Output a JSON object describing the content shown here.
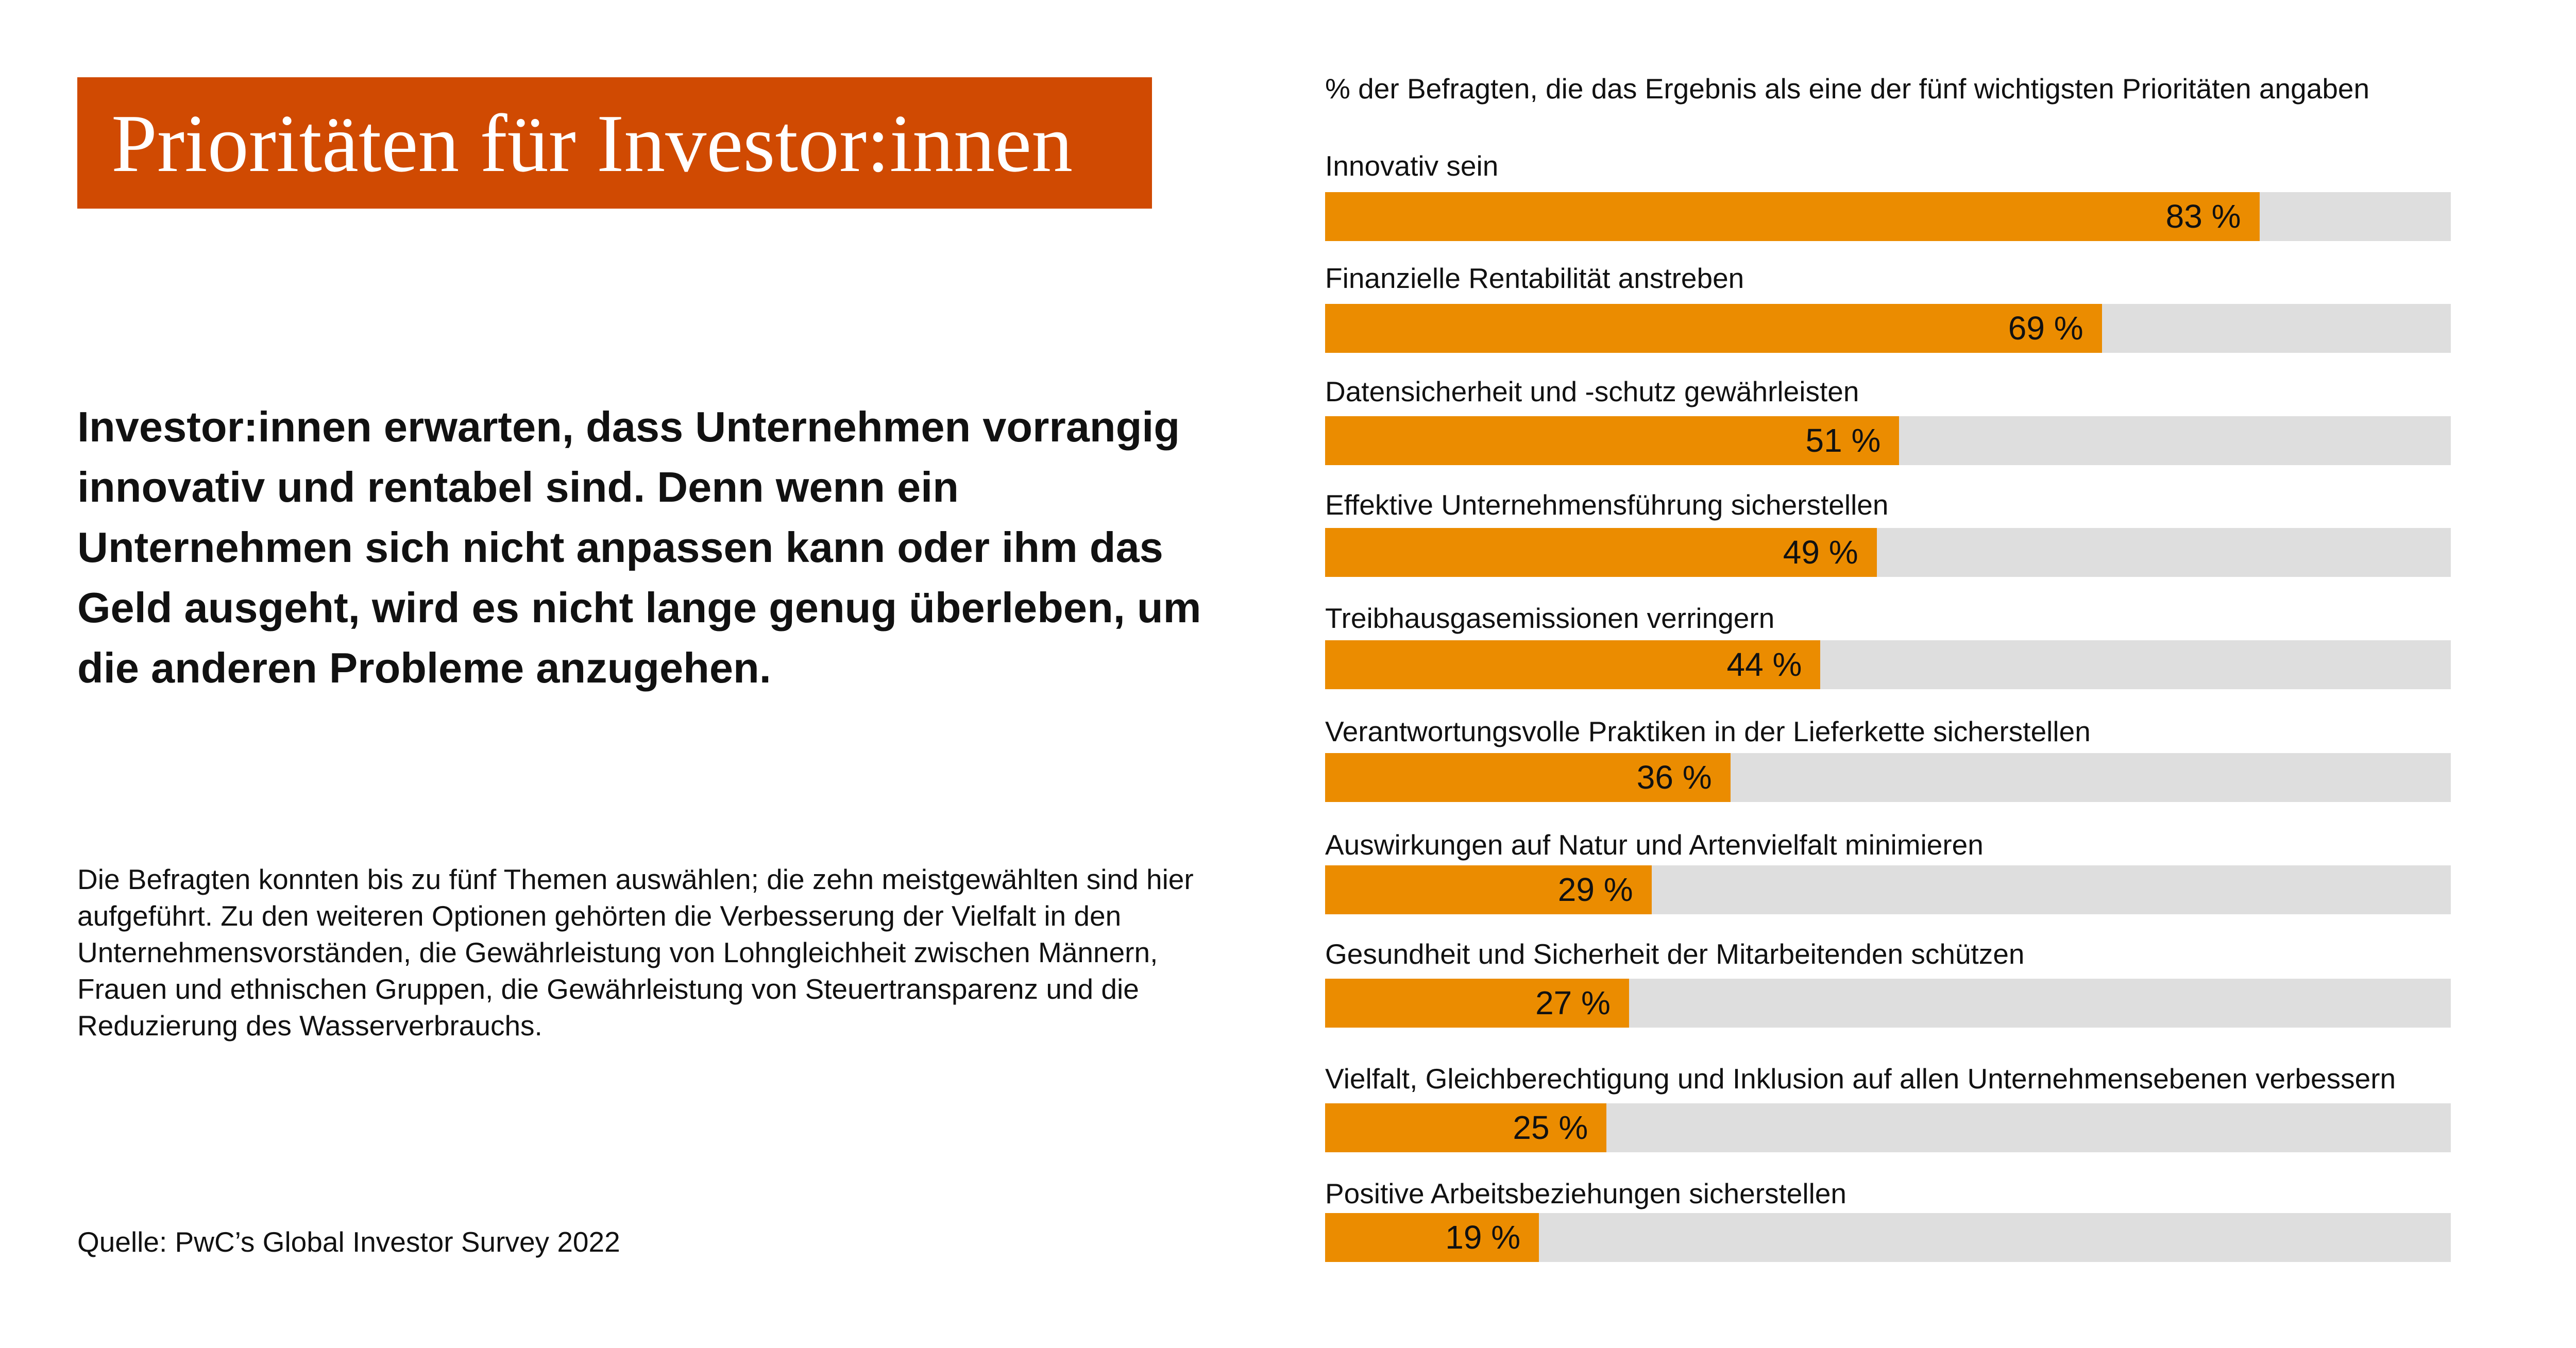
{
  "title": "Prioritäten für Investor:innen",
  "headline": "Investor:innen erwarten, dass Unternehmen vorrangig innovativ und rentabel sind. Denn wenn ein Unternehmen sich nicht anpassen kann oder ihm das Geld ausgeht, wird es nicht lange genug überleben, um die anderen Probleme anzugehen.",
  "footnote": "Die Befragten konnten bis zu fünf Themen auswählen; die zehn meistgewählten sind hier aufgeführt. Zu den weiteren Optionen gehörten die Verbesserung der Vielfalt in den Unternehmensvorständen, die Gewährleistung von Lohngleichheit zwischen Männern, Frauen und ethnischen Gruppen, die Gewährleistung von Steuertransparenz und die Reduzierung des Wasserverbrauchs.",
  "source": "Quelle: PwC’s Global Investor Survey 2022",
  "colors": {
    "title_bg": "#d04a02",
    "bar": "#eb8c00",
    "track": "#dedede"
  },
  "chart_data": {
    "type": "bar",
    "orientation": "horizontal",
    "subtitle": "% der Befragten, die das Ergebnis als eine der fünf wichtigsten Prioritäten angaben",
    "ylim": [
      0,
      100
    ],
    "categories": [
      "Innovativ sein",
      "Finanzielle Rentabilität anstreben",
      "Datensicherheit und -schutz gewährleisten",
      "Effektive Unternehmensführung sicherstellen",
      "Treibhausgasemissionen verringern",
      "Verantwortungsvolle Praktiken in der Lieferkette sicherstellen",
      "Auswirkungen auf Natur und Artenvielfalt minimieren",
      "Gesundheit und Sicherheit der Mitarbeitenden schützen",
      "Vielfalt, Gleichberechtigung und Inklusion auf allen Unternehmensebenen verbessern",
      "Positive Arbeitsbeziehungen sicherstellen"
    ],
    "values": [
      83,
      69,
      51,
      49,
      44,
      36,
      29,
      27,
      25,
      19
    ],
    "value_labels": [
      "83 %",
      "69 %",
      "51 %",
      "49 %",
      "44 %",
      "36 %",
      "29 %",
      "27 %",
      "25 %",
      "19 %"
    ]
  }
}
